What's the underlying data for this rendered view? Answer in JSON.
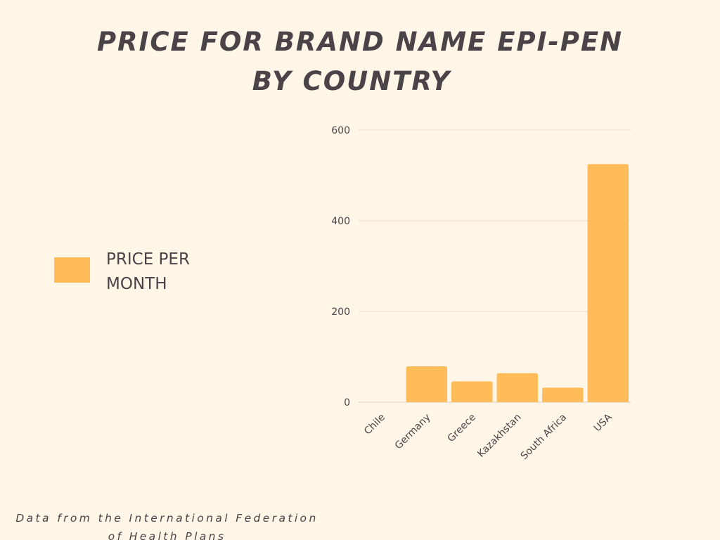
{
  "title": {
    "line1": "PRICE FOR BRAND NAME EPI-PEN",
    "line2": "BY COUNTRY"
  },
  "legend": {
    "label_line1": "PRICE PER",
    "label_line2": "MONTH",
    "color": "#ffbc59"
  },
  "footer": {
    "line1": "Data from the International Federation",
    "line2": "of Health Plans"
  },
  "chart_data": {
    "type": "bar",
    "title": "PRICE FOR BRAND NAME EPI-PEN BY COUNTRY",
    "xlabel": "",
    "ylabel": "",
    "categories": [
      "Chile",
      "Germany",
      "Greece",
      "Kazakhstan",
      "South Africa",
      "USA"
    ],
    "series": [
      {
        "name": "PRICE PER MONTH",
        "values": [
          0,
          79,
          46,
          64,
          32,
          525
        ],
        "color": "#ffbc59"
      }
    ],
    "ylim": [
      0,
      600
    ],
    "yticks": [
      0,
      200,
      400,
      600
    ],
    "grid": true,
    "legend_position": "left"
  }
}
